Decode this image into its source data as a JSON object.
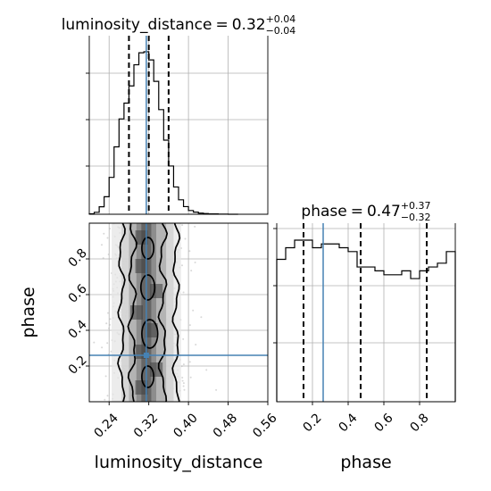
{
  "chart_data": {
    "type": "corner",
    "parameters": [
      "luminosity_distance",
      "phase"
    ],
    "injection": {
      "luminosity_distance": 0.315,
      "phase": 0.26
    },
    "panels": [
      {
        "position": "top-left",
        "type": "histogram",
        "parameter": "luminosity_distance",
        "title": {
          "name": "luminosity_distance",
          "median": "0.32",
          "plus": "+0.04",
          "minus": "−0.04"
        },
        "xlim": [
          0.2,
          0.56
        ],
        "bin_edges": [
          0.2,
          0.21,
          0.22,
          0.23,
          0.24,
          0.25,
          0.26,
          0.27,
          0.28,
          0.29,
          0.3,
          0.31,
          0.32,
          0.33,
          0.34,
          0.35,
          0.36,
          0.37,
          0.38,
          0.39,
          0.4,
          0.41,
          0.42,
          0.43,
          0.44,
          0.45,
          0.46,
          0.47,
          0.48,
          0.49,
          0.5
        ],
        "counts": [
          0.3,
          1.2,
          4.6,
          10.8,
          22.7,
          41.5,
          58.7,
          68.4,
          79.0,
          92.0,
          99.4,
          100.0,
          95.0,
          81.8,
          64.4,
          45.6,
          29.7,
          16.8,
          8.9,
          4.7,
          2.3,
          1.3,
          0.7,
          0.4,
          0.2,
          0.2,
          0.1,
          0.1,
          0,
          0
        ],
        "quantiles": [
          0.28,
          0.32,
          0.36
        ]
      },
      {
        "position": "middle-right",
        "type": "histogram",
        "parameter": "phase",
        "title": {
          "name": "phase",
          "median": "0.47",
          "plus": "+0.37",
          "minus": "−0.32"
        },
        "xlim": [
          0.0,
          1.0
        ],
        "bin_edges": [
          0.0,
          0.05,
          0.1,
          0.15,
          0.2,
          0.25,
          0.3,
          0.35,
          0.4,
          0.45,
          0.5,
          0.55,
          0.6,
          0.65,
          0.7,
          0.75,
          0.8,
          0.85,
          0.9,
          0.95,
          1.0
        ],
        "counts": [
          82.2,
          88.9,
          93.3,
          93.3,
          88.9,
          91.1,
          91.1,
          88.9,
          86.7,
          77.8,
          77.8,
          75.6,
          73.3,
          73.3,
          75.6,
          71.1,
          75.6,
          77.8,
          80.0,
          86.7
        ],
        "quantiles": [
          0.15,
          0.47,
          0.84
        ]
      },
      {
        "position": "middle-left",
        "type": "2d-density",
        "x": "luminosity_distance",
        "y": "phase",
        "xlim": [
          0.2,
          0.56
        ],
        "ylim": [
          0.0,
          1.0
        ],
        "density_band": [
          0.3,
          0.325
        ],
        "contour_bounds": [
          0.265,
          0.375
        ]
      }
    ],
    "xticks_luminosity": [
      "0.24",
      "0.32",
      "0.40",
      "0.48",
      "0.56"
    ],
    "xticks_luminosity_values": [
      0.24,
      0.32,
      0.4,
      0.48,
      0.56
    ],
    "yticks_phase": [
      "0.2",
      "0.4",
      "0.6",
      "0.8"
    ],
    "yticks_phase_values": [
      0.2,
      0.4,
      0.6,
      0.8
    ],
    "xticks_phase": [
      "0.2",
      "0.4",
      "0.6",
      "0.8"
    ],
    "xticks_phase_values": [
      0.2,
      0.4,
      0.6,
      0.8
    ],
    "xlabel_left": "luminosity_distance",
    "xlabel_right": "phase",
    "ylabel": "phase",
    "colors": {
      "truth": "#4682b4",
      "line": "#000000",
      "grid": "#b0b0b0",
      "samples": "#b0b0b0"
    }
  }
}
